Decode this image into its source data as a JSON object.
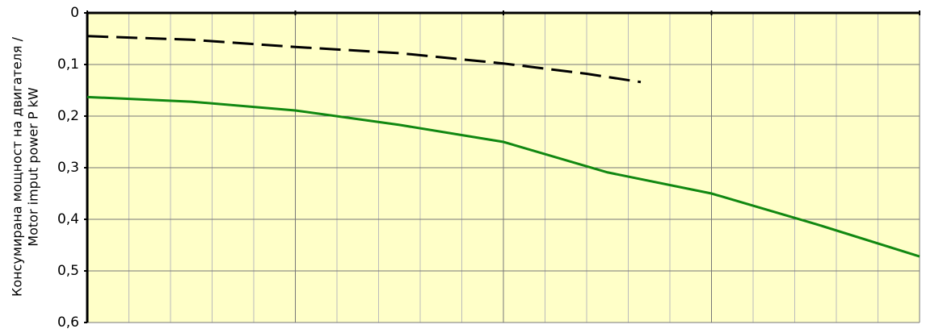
{
  "chart_data": {
    "type": "line",
    "ylabel": [
      "Консумирана мощност на двигателя /",
      "Motor imput power P kW"
    ],
    "xlim": [
      0,
      20
    ],
    "ylim": [
      0,
      0.6
    ],
    "y_inverted": true,
    "yticks": [
      0,
      {
        "value": 0.1,
        "label": "0,1"
      },
      {
        "value": 0.2,
        "label": "0,2"
      },
      {
        "value": 0.3,
        "label": "0,3"
      },
      {
        "value": 0.4,
        "label": "0,4"
      },
      {
        "value": 0.5,
        "label": "0,5"
      },
      {
        "value": 0.6,
        "label": "0,6"
      }
    ],
    "grid": true,
    "background": "#ffffc8",
    "series": [
      {
        "x": [
          0,
          2.5,
          5,
          7.5,
          10,
          12,
          13.3
        ],
        "values": [
          0.045,
          0.052,
          0.066,
          0.078,
          0.098,
          0.118,
          0.134
        ],
        "color": "#000000",
        "dashed": true
      },
      {
        "x": [
          0,
          2.5,
          5,
          7.5,
          10,
          12.5,
          15,
          17.5,
          20
        ],
        "values": [
          0.163,
          0.172,
          0.189,
          0.217,
          0.25,
          0.309,
          0.35,
          0.409,
          0.472
        ],
        "color": "#118811",
        "dashed": false
      }
    ]
  }
}
